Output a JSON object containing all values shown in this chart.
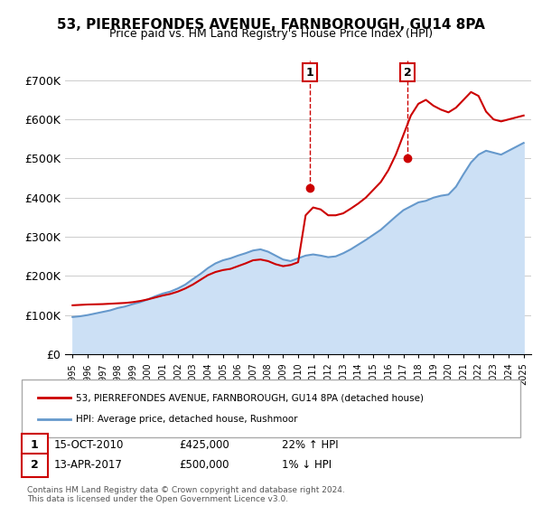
{
  "title": "53, PIERREFONDES AVENUE, FARNBOROUGH, GU14 8PA",
  "subtitle": "Price paid vs. HM Land Registry's House Price Index (HPI)",
  "ylabel": "",
  "ylim": [
    0,
    750000
  ],
  "yticks": [
    0,
    100000,
    200000,
    300000,
    400000,
    500000,
    600000,
    700000
  ],
  "ytick_labels": [
    "£0",
    "£100K",
    "£200K",
    "£300K",
    "£400K",
    "£500K",
    "£600K",
    "£700K"
  ],
  "hpi_color": "#6699cc",
  "hpi_fill_color": "#cce0f5",
  "price_color": "#cc0000",
  "marker1_date_idx": 15.79,
  "marker1_value": 425000,
  "marker2_date_idx": 22.29,
  "marker2_value": 500000,
  "legend_label1": "53, PIERREFONDES AVENUE, FARNBOROUGH, GU14 8PA (detached house)",
  "legend_label2": "HPI: Average price, detached house, Rushmoor",
  "annotation1_label": "1",
  "annotation1_date": "15-OCT-2010",
  "annotation1_price": "£425,000",
  "annotation1_hpi": "22% ↑ HPI",
  "annotation2_label": "2",
  "annotation2_date": "13-APR-2017",
  "annotation2_price": "£500,000",
  "annotation2_hpi": "1% ↓ HPI",
  "footer": "Contains HM Land Registry data © Crown copyright and database right 2024.\nThis data is licensed under the Open Government Licence v3.0.",
  "background_color": "#ffffff",
  "hpi_years": [
    1995,
    1995.5,
    1996,
    1996.5,
    1997,
    1997.5,
    1998,
    1998.5,
    1999,
    1999.5,
    2000,
    2000.5,
    2001,
    2001.5,
    2002,
    2002.5,
    2003,
    2003.5,
    2004,
    2004.5,
    2005,
    2005.5,
    2006,
    2006.5,
    2007,
    2007.5,
    2008,
    2008.5,
    2009,
    2009.5,
    2010,
    2010.5,
    2011,
    2011.5,
    2012,
    2012.5,
    2013,
    2013.5,
    2014,
    2014.5,
    2015,
    2015.5,
    2016,
    2016.5,
    2017,
    2017.5,
    2018,
    2018.5,
    2019,
    2019.5,
    2020,
    2020.5,
    2021,
    2021.5,
    2022,
    2022.5,
    2023,
    2023.5,
    2024,
    2024.5,
    2025
  ],
  "hpi_values": [
    95000,
    97000,
    100000,
    104000,
    108000,
    112000,
    118000,
    122000,
    128000,
    133000,
    140000,
    148000,
    155000,
    160000,
    168000,
    178000,
    192000,
    205000,
    220000,
    232000,
    240000,
    245000,
    252000,
    258000,
    265000,
    268000,
    262000,
    252000,
    242000,
    238000,
    245000,
    252000,
    255000,
    252000,
    248000,
    250000,
    258000,
    268000,
    280000,
    292000,
    305000,
    318000,
    335000,
    352000,
    368000,
    378000,
    388000,
    392000,
    400000,
    405000,
    408000,
    428000,
    460000,
    490000,
    510000,
    520000,
    515000,
    510000,
    520000,
    530000,
    540000
  ],
  "price_years": [
    1995,
    1995.5,
    1996,
    1996.5,
    1997,
    1997.5,
    1998,
    1998.5,
    1999,
    1999.5,
    2000,
    2000.5,
    2001,
    2001.5,
    2002,
    2002.5,
    2003,
    2003.5,
    2004,
    2004.5,
    2005,
    2005.5,
    2006,
    2006.5,
    2007,
    2007.5,
    2008,
    2008.5,
    2009,
    2009.5,
    2010,
    2010.5,
    2011,
    2011.5,
    2012,
    2012.5,
    2013,
    2013.5,
    2014,
    2014.5,
    2015,
    2015.5,
    2016,
    2016.5,
    2017,
    2017.5,
    2018,
    2018.5,
    2019,
    2019.5,
    2020,
    2020.5,
    2021,
    2021.5,
    2022,
    2022.5,
    2023,
    2023.5,
    2024,
    2024.5,
    2025
  ],
  "price_values": [
    125000,
    126000,
    127000,
    127500,
    128000,
    129000,
    130000,
    131000,
    133000,
    136000,
    140000,
    145000,
    150000,
    154000,
    160000,
    168000,
    178000,
    190000,
    202000,
    210000,
    215000,
    218000,
    225000,
    232000,
    240000,
    242000,
    238000,
    230000,
    225000,
    228000,
    235000,
    355000,
    375000,
    370000,
    355000,
    355000,
    360000,
    372000,
    385000,
    400000,
    420000,
    440000,
    470000,
    510000,
    560000,
    610000,
    640000,
    650000,
    635000,
    625000,
    618000,
    630000,
    650000,
    670000,
    660000,
    620000,
    600000,
    595000,
    600000,
    605000,
    610000
  ],
  "xlim_start": 1994.5,
  "xlim_end": 2025.5
}
